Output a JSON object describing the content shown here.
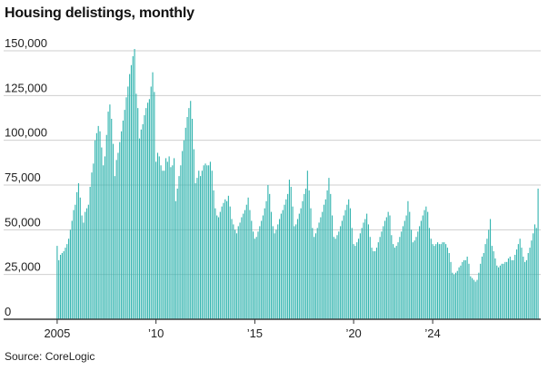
{
  "title": "Housing delistings, monthly",
  "source": "Source: CoreLogic",
  "colors": {
    "bar": "#35b5b0",
    "bar_edge": "#1f8f8a",
    "grid": "#cfcfcf",
    "axis": "#333333"
  },
  "chart_data": {
    "type": "bar",
    "title": "Housing delistings, monthly",
    "xlabel": "",
    "ylabel": "",
    "ylim": [
      0,
      150000
    ],
    "yticks": [
      0,
      25000,
      50000,
      75000,
      100000,
      125000,
      150000
    ],
    "ytick_labels": [
      "0",
      "25,000",
      "50,000",
      "75,000",
      "100,000",
      "125,000",
      "150,000"
    ],
    "xtick_labels": [
      {
        "label": "2005",
        "x": "2005-01"
      },
      {
        "label": "’10",
        "x": "2010-01"
      },
      {
        "label": "’15",
        "x": "2015-01"
      },
      {
        "label": "’20",
        "x": "2020-01"
      },
      {
        "label": "’24",
        "x": "2024-01"
      }
    ],
    "x_start": "2005-01",
    "grid": true,
    "values": [
      41000,
      33000,
      36000,
      37000,
      38000,
      40000,
      42000,
      45000,
      50000,
      55000,
      61000,
      64000,
      71000,
      76000,
      68000,
      58000,
      54000,
      60000,
      62000,
      64000,
      74000,
      82000,
      87000,
      100000,
      104000,
      108000,
      105000,
      96000,
      86000,
      91000,
      103000,
      116000,
      120000,
      112000,
      98000,
      80000,
      89000,
      93000,
      99000,
      105000,
      111000,
      117000,
      124000,
      130000,
      137000,
      142000,
      147000,
      151000,
      126000,
      118000,
      101000,
      106000,
      109000,
      114000,
      118000,
      121000,
      123000,
      130000,
      138000,
      127000,
      88000,
      93000,
      91000,
      86000,
      83000,
      83000,
      90000,
      88000,
      91000,
      85000,
      86000,
      90000,
      66000,
      73000,
      80000,
      86000,
      94000,
      100000,
      107000,
      113000,
      118000,
      122000,
      112000,
      95000,
      76000,
      79000,
      83000,
      80000,
      83000,
      86000,
      87000,
      86000,
      86000,
      88000,
      83000,
      72000,
      62000,
      58000,
      57000,
      60000,
      63000,
      65000,
      67000,
      66000,
      69000,
      63000,
      56000,
      53000,
      50000,
      48000,
      52000,
      54000,
      57000,
      59000,
      61000,
      64000,
      68000,
      61000,
      55000,
      49000,
      45000,
      46000,
      49000,
      52000,
      55000,
      58000,
      62000,
      66000,
      75000,
      70000,
      60000,
      52000,
      48000,
      50000,
      53000,
      56000,
      59000,
      61000,
      64000,
      67000,
      70000,
      78000,
      74000,
      63000,
      52000,
      53000,
      56000,
      59000,
      62000,
      66000,
      70000,
      73000,
      83000,
      72000,
      62000,
      51000,
      46000,
      48000,
      51000,
      54000,
      57000,
      60000,
      64000,
      67000,
      72000,
      79000,
      70000,
      58000,
      46000,
      45000,
      47000,
      49000,
      52000,
      55000,
      58000,
      61000,
      64000,
      67000,
      62000,
      51000,
      42000,
      41000,
      43000,
      45000,
      48000,
      51000,
      54000,
      56000,
      59000,
      53000,
      46000,
      40000,
      38000,
      38000,
      40000,
      43000,
      46000,
      49000,
      52000,
      55000,
      57000,
      60000,
      58000,
      47000,
      42000,
      40000,
      41000,
      43000,
      46000,
      49000,
      52000,
      55000,
      58000,
      66000,
      60000,
      50000,
      43000,
      44000,
      46000,
      49000,
      52000,
      55000,
      58000,
      61000,
      63000,
      60000,
      51000,
      45000,
      42000,
      41000,
      42000,
      43000,
      42000,
      42000,
      43000,
      43000,
      42000,
      40000,
      37000,
      32000,
      26000,
      25000,
      26000,
      27000,
      29000,
      30000,
      32000,
      33000,
      33000,
      35000,
      31000,
      24000,
      23000,
      22000,
      21000,
      22000,
      26000,
      31000,
      35000,
      37000,
      42000,
      45000,
      50000,
      56000,
      41000,
      38000,
      34000,
      30000,
      29000,
      30000,
      31000,
      31000,
      32000,
      32000,
      34000,
      35000,
      33000,
      33000,
      36000,
      39000,
      42000,
      45000,
      40000,
      35000,
      32000,
      33000,
      37000,
      40000,
      44000,
      48000,
      53000,
      51000,
      73000
    ]
  }
}
